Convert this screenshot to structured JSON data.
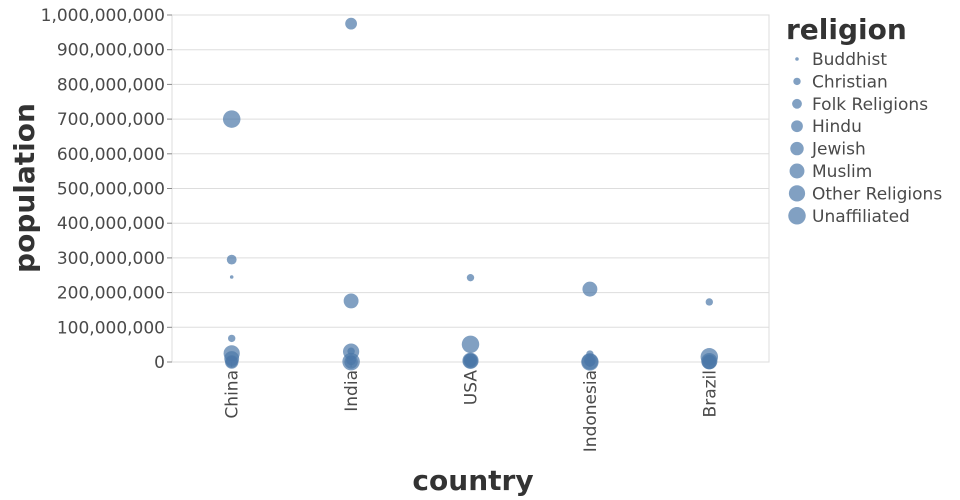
{
  "chart_data": {
    "type": "scatter",
    "xlabel": "country",
    "ylabel": "population",
    "categories": [
      "China",
      "India",
      "USA",
      "Indonesia",
      "Brazil"
    ],
    "ylim": [
      0,
      1000000000
    ],
    "yticks": [
      {
        "value": 0,
        "label": "0"
      },
      {
        "value": 100000000,
        "label": "100,000,000"
      },
      {
        "value": 200000000,
        "label": "200,000,000"
      },
      {
        "value": 300000000,
        "label": "300,000,000"
      },
      {
        "value": 400000000,
        "label": "400,000,000"
      },
      {
        "value": 500000000,
        "label": "500,000,000"
      },
      {
        "value": 600000000,
        "label": "600,000,000"
      },
      {
        "value": 700000000,
        "label": "700,000,000"
      },
      {
        "value": 800000000,
        "label": "800,000,000"
      },
      {
        "value": 900000000,
        "label": "900,000,000"
      },
      {
        "value": 1000000000,
        "label": "1,000,000,000"
      }
    ],
    "grid": true,
    "legend": {
      "title": "religion",
      "placement": "right",
      "encoding": "size",
      "entries": [
        "Buddhist",
        "Christian",
        "Folk Religions",
        "Hindu",
        "Jewish",
        "Muslim",
        "Other Religions",
        "Unaffiliated"
      ]
    },
    "color": "#4c78a8",
    "points": [
      {
        "country": "China",
        "religion": "Unaffiliated",
        "population": 700000000
      },
      {
        "country": "China",
        "religion": "Folk Religions",
        "population": 295000000
      },
      {
        "country": "China",
        "religion": "Buddhist",
        "population": 245000000
      },
      {
        "country": "China",
        "religion": "Christian",
        "population": 68000000
      },
      {
        "country": "China",
        "religion": "Other Religions",
        "population": 25000000
      },
      {
        "country": "China",
        "religion": "Muslim",
        "population": 10000000
      },
      {
        "country": "China",
        "religion": "Hindu",
        "population": 50000
      },
      {
        "country": "China",
        "religion": "Jewish",
        "population": 10000
      },
      {
        "country": "India",
        "religion": "Hindu",
        "population": 975000000
      },
      {
        "country": "India",
        "religion": "Muslim",
        "population": 176000000
      },
      {
        "country": "India",
        "religion": "Other Religions",
        "population": 30000000
      },
      {
        "country": "India",
        "religion": "Christian",
        "population": 31000000
      },
      {
        "country": "India",
        "religion": "Buddhist",
        "population": 9000000
      },
      {
        "country": "India",
        "religion": "Folk Religions",
        "population": 5000000
      },
      {
        "country": "India",
        "religion": "Unaffiliated",
        "population": 1000000
      },
      {
        "country": "India",
        "religion": "Jewish",
        "population": 10000
      },
      {
        "country": "USA",
        "religion": "Christian",
        "population": 243000000
      },
      {
        "country": "USA",
        "religion": "Unaffiliated",
        "population": 51000000
      },
      {
        "country": "USA",
        "religion": "Jewish",
        "population": 5700000
      },
      {
        "country": "USA",
        "religion": "Other Religions",
        "population": 3500000
      },
      {
        "country": "USA",
        "religion": "Muslim",
        "population": 2800000
      },
      {
        "country": "USA",
        "religion": "Buddhist",
        "population": 3600000
      },
      {
        "country": "USA",
        "religion": "Hindu",
        "population": 1800000
      },
      {
        "country": "USA",
        "religion": "Folk Religions",
        "population": 600000
      },
      {
        "country": "Indonesia",
        "religion": "Muslim",
        "population": 210000000
      },
      {
        "country": "Indonesia",
        "religion": "Christian",
        "population": 23000000
      },
      {
        "country": "Indonesia",
        "religion": "Hindu",
        "population": 4000000
      },
      {
        "country": "Indonesia",
        "religion": "Buddhist",
        "population": 1700000
      },
      {
        "country": "Indonesia",
        "religion": "Other Religions",
        "population": 1000000
      },
      {
        "country": "Indonesia",
        "religion": "Folk Religions",
        "population": 800000
      },
      {
        "country": "Indonesia",
        "religion": "Unaffiliated",
        "population": 200000
      },
      {
        "country": "Brazil",
        "religion": "Christian",
        "population": 173000000
      },
      {
        "country": "Brazil",
        "religion": "Unaffiliated",
        "population": 15000000
      },
      {
        "country": "Brazil",
        "religion": "Folk Religions",
        "population": 5500000
      },
      {
        "country": "Brazil",
        "religion": "Other Religions",
        "population": 2500000
      },
      {
        "country": "Brazil",
        "religion": "Buddhist",
        "population": 250000
      },
      {
        "country": "Brazil",
        "religion": "Jewish",
        "population": 110000
      },
      {
        "country": "Brazil",
        "religion": "Muslim",
        "population": 40000
      }
    ]
  }
}
